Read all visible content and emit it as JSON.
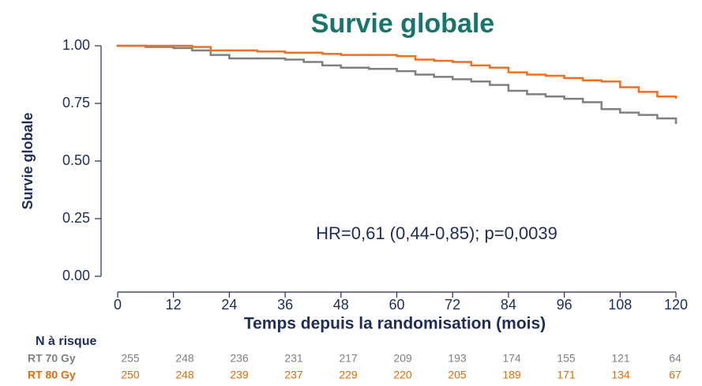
{
  "chart_data": {
    "type": "line",
    "drawstyle": "steps-post",
    "title": "Survie globale",
    "ylabel": "Survie globale",
    "xlabel": "Temps depuis la randomisation (mois)",
    "annotation": "HR=0,61 (0,44-0,85); p=0,0039",
    "x": [
      0,
      6,
      12,
      16,
      20,
      24,
      30,
      36,
      40,
      44,
      48,
      54,
      60,
      64,
      68,
      72,
      76,
      80,
      84,
      88,
      92,
      96,
      100,
      104,
      108,
      112,
      116,
      120
    ],
    "series": [
      {
        "name": "RT 70 Gy",
        "color": "#808080",
        "values": [
          1.0,
          0.995,
          0.99,
          0.98,
          0.96,
          0.945,
          0.945,
          0.94,
          0.93,
          0.915,
          0.905,
          0.9,
          0.89,
          0.875,
          0.865,
          0.855,
          0.845,
          0.83,
          0.805,
          0.79,
          0.78,
          0.77,
          0.755,
          0.725,
          0.71,
          0.7,
          0.685,
          0.665
        ]
      },
      {
        "name": "RT 80 Gy",
        "color": "#f07020",
        "values": [
          1.0,
          1.0,
          1.0,
          0.995,
          0.98,
          0.98,
          0.975,
          0.97,
          0.97,
          0.965,
          0.96,
          0.96,
          0.955,
          0.94,
          0.935,
          0.93,
          0.915,
          0.905,
          0.885,
          0.875,
          0.87,
          0.86,
          0.85,
          0.845,
          0.82,
          0.8,
          0.78,
          0.775
        ]
      }
    ],
    "xlim": [
      0,
      120
    ],
    "xticks": [
      0,
      12,
      24,
      36,
      48,
      60,
      72,
      84,
      96,
      108,
      120
    ],
    "ylim": [
      0,
      1
    ],
    "yticks": [
      {
        "value": 0,
        "label": "0.00"
      },
      {
        "value": 0.25,
        "label": "0.25"
      },
      {
        "value": 0.5,
        "label": "0.50"
      },
      {
        "value": 0.75,
        "label": "0.75"
      },
      {
        "value": 1,
        "label": "1.00"
      }
    ],
    "risk_table": {
      "title": "N à risque",
      "rows": [
        {
          "name": "RT 70 Gy",
          "color": "#808080",
          "values": [
            255,
            248,
            236,
            231,
            217,
            209,
            193,
            174,
            155,
            121,
            64
          ]
        },
        {
          "name": "RT 80 Gy",
          "color": "#e36c0a",
          "values": [
            250,
            248,
            239,
            237,
            229,
            220,
            205,
            189,
            171,
            134,
            67
          ]
        }
      ]
    }
  }
}
